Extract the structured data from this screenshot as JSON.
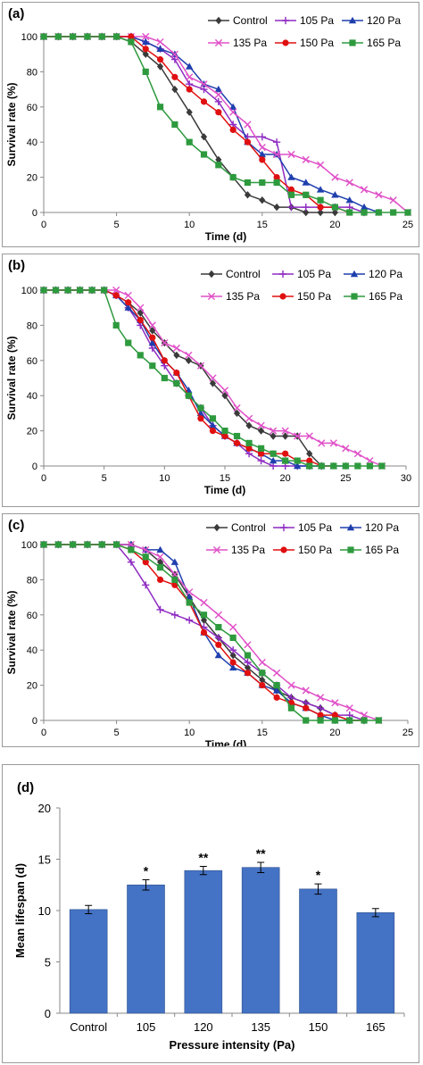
{
  "chart_data": [
    {
      "type": "line",
      "panel_label": "(a)",
      "xlabel": "Time (d)",
      "ylabel": "Survival rate (%)",
      "xlim": [
        0,
        25
      ],
      "ylim": [
        0,
        100
      ],
      "xticks": [
        "0",
        "5",
        "10",
        "15",
        "20",
        "25"
      ],
      "yticks": [
        "0",
        "20",
        "40",
        "60",
        "80",
        "100"
      ],
      "legend_position": "top-right",
      "series": [
        {
          "name": "Control",
          "color": "#3a3a3a",
          "marker": "diamond",
          "x": [
            0,
            1,
            2,
            3,
            4,
            5,
            6,
            7,
            8,
            9,
            10,
            11,
            12,
            13,
            14,
            15,
            16,
            17,
            18,
            19,
            20
          ],
          "y": [
            100,
            100,
            100,
            100,
            100,
            100,
            97,
            90,
            83,
            70,
            57,
            43,
            30,
            20,
            10,
            7,
            3,
            3,
            0,
            0,
            0
          ]
        },
        {
          "name": "105 Pa",
          "color": "#8e2bc2",
          "marker": "plus",
          "x": [
            0,
            1,
            2,
            3,
            4,
            5,
            6,
            7,
            8,
            9,
            10,
            11,
            12,
            13,
            14,
            15,
            16,
            17,
            18,
            19,
            20,
            21,
            22
          ],
          "y": [
            100,
            100,
            100,
            100,
            100,
            100,
            100,
            97,
            93,
            87,
            73,
            70,
            63,
            50,
            43,
            43,
            40,
            3,
            3,
            3,
            3,
            3,
            0
          ]
        },
        {
          "name": "120 Pa",
          "color": "#1f3fae",
          "marker": "triangle",
          "x": [
            0,
            1,
            2,
            3,
            4,
            5,
            6,
            7,
            8,
            9,
            10,
            11,
            12,
            13,
            14,
            15,
            16,
            17,
            18,
            19,
            20,
            21,
            22,
            23
          ],
          "y": [
            100,
            100,
            100,
            100,
            100,
            100,
            100,
            97,
            93,
            90,
            83,
            73,
            70,
            60,
            40,
            33,
            33,
            20,
            17,
            13,
            10,
            7,
            3,
            0
          ]
        },
        {
          "name": "135 Pa",
          "color": "#e050c8",
          "marker": "x",
          "x": [
            0,
            1,
            2,
            3,
            4,
            5,
            6,
            7,
            8,
            9,
            10,
            11,
            12,
            13,
            14,
            15,
            16,
            17,
            18,
            19,
            20,
            21,
            22,
            23,
            24,
            25
          ],
          "y": [
            100,
            100,
            100,
            100,
            100,
            100,
            100,
            100,
            97,
            90,
            77,
            73,
            67,
            57,
            50,
            37,
            33,
            33,
            30,
            27,
            20,
            17,
            13,
            10,
            7,
            0
          ]
        },
        {
          "name": "150 Pa",
          "color": "#e01010",
          "marker": "circle",
          "x": [
            0,
            1,
            2,
            3,
            4,
            5,
            6,
            7,
            8,
            9,
            10,
            11,
            12,
            13,
            14,
            15,
            16,
            17,
            18,
            19,
            20,
            21
          ],
          "y": [
            100,
            100,
            100,
            100,
            100,
            100,
            100,
            93,
            87,
            77,
            70,
            63,
            57,
            47,
            40,
            30,
            20,
            13,
            10,
            3,
            3,
            0
          ]
        },
        {
          "name": "165 Pa",
          "color": "#2e9a3e",
          "marker": "square",
          "x": [
            0,
            1,
            2,
            3,
            4,
            5,
            6,
            7,
            8,
            9,
            10,
            11,
            12,
            13,
            14,
            15,
            16,
            17,
            18,
            19,
            20,
            21,
            22,
            23,
            24,
            25
          ],
          "y": [
            100,
            100,
            100,
            100,
            100,
            100,
            97,
            80,
            60,
            50,
            40,
            33,
            27,
            20,
            17,
            17,
            17,
            10,
            10,
            7,
            3,
            0,
            0,
            0,
            0,
            0
          ]
        }
      ]
    },
    {
      "type": "line",
      "panel_label": "(b)",
      "xlabel": "Time (d)",
      "ylabel": "Survival rate (%)",
      "xlim": [
        0,
        30
      ],
      "ylim": [
        0,
        100
      ],
      "xticks": [
        "0",
        "5",
        "10",
        "15",
        "20",
        "25",
        "30"
      ],
      "yticks": [
        "0",
        "20",
        "40",
        "60",
        "80",
        "100"
      ],
      "legend_position": "top-right",
      "series": [
        {
          "name": "Control",
          "color": "#3a3a3a",
          "marker": "diamond",
          "x": [
            0,
            1,
            2,
            3,
            4,
            5,
            6,
            7,
            8,
            9,
            10,
            11,
            12,
            13,
            14,
            15,
            16,
            17,
            18,
            19,
            20,
            21,
            22,
            23
          ],
          "y": [
            100,
            100,
            100,
            100,
            100,
            100,
            97,
            93,
            87,
            77,
            70,
            63,
            60,
            57,
            47,
            40,
            30,
            23,
            20,
            17,
            17,
            17,
            7,
            0
          ]
        },
        {
          "name": "105 Pa",
          "color": "#8e2bc2",
          "marker": "plus",
          "x": [
            0,
            1,
            2,
            3,
            4,
            5,
            6,
            7,
            8,
            9,
            10,
            11,
            12,
            13,
            14,
            15,
            16,
            17,
            18,
            19,
            20,
            21,
            22,
            23
          ],
          "y": [
            100,
            100,
            100,
            100,
            100,
            100,
            97,
            90,
            80,
            67,
            57,
            47,
            40,
            33,
            23,
            17,
            13,
            7,
            3,
            0,
            0,
            0,
            0,
            0
          ]
        },
        {
          "name": "120 Pa",
          "color": "#1f3fae",
          "marker": "triangle",
          "x": [
            0,
            1,
            2,
            3,
            4,
            5,
            6,
            7,
            8,
            9,
            10,
            11,
            12,
            13,
            14,
            15,
            16,
            17,
            18,
            19,
            20,
            21,
            22,
            23,
            24,
            25
          ],
          "y": [
            100,
            100,
            100,
            100,
            100,
            100,
            97,
            90,
            83,
            70,
            60,
            53,
            43,
            30,
            23,
            17,
            13,
            10,
            7,
            3,
            3,
            0,
            0,
            0,
            0,
            0
          ]
        },
        {
          "name": "135 Pa",
          "color": "#e050c8",
          "marker": "x",
          "x": [
            0,
            1,
            2,
            3,
            4,
            5,
            6,
            7,
            8,
            9,
            10,
            11,
            12,
            13,
            14,
            15,
            16,
            17,
            18,
            19,
            20,
            21,
            22,
            23,
            24,
            25,
            26,
            27,
            28
          ],
          "y": [
            100,
            100,
            100,
            100,
            100,
            100,
            100,
            97,
            90,
            80,
            70,
            67,
            63,
            57,
            50,
            43,
            33,
            27,
            23,
            20,
            20,
            17,
            17,
            13,
            13,
            10,
            7,
            3,
            0
          ]
        },
        {
          "name": "150 Pa",
          "color": "#e01010",
          "marker": "circle",
          "x": [
            0,
            1,
            2,
            3,
            4,
            5,
            6,
            7,
            8,
            9,
            10,
            11,
            12,
            13,
            14,
            15,
            16,
            17,
            18,
            19,
            20,
            21,
            22,
            23,
            24
          ],
          "y": [
            100,
            100,
            100,
            100,
            100,
            100,
            97,
            93,
            83,
            73,
            60,
            53,
            40,
            27,
            20,
            17,
            13,
            10,
            7,
            7,
            7,
            3,
            3,
            0,
            0
          ]
        },
        {
          "name": "165 Pa",
          "color": "#2e9a3e",
          "marker": "square",
          "x": [
            0,
            1,
            2,
            3,
            4,
            5,
            6,
            7,
            8,
            9,
            10,
            11,
            12,
            13,
            14,
            15,
            16,
            17,
            18,
            19,
            20,
            21,
            22,
            23,
            24,
            25,
            26,
            27,
            28
          ],
          "y": [
            100,
            100,
            100,
            100,
            100,
            100,
            80,
            70,
            63,
            57,
            50,
            47,
            40,
            33,
            27,
            20,
            17,
            13,
            10,
            7,
            3,
            3,
            0,
            0,
            0,
            0,
            0,
            0,
            0
          ]
        }
      ]
    },
    {
      "type": "line",
      "panel_label": "(c)",
      "xlabel": "Time (d)",
      "ylabel": "Survival rate (%)",
      "xlim": [
        0,
        25
      ],
      "ylim": [
        0,
        100
      ],
      "xticks": [
        "0",
        "5",
        "10",
        "15",
        "20",
        "25"
      ],
      "yticks": [
        "0",
        "20",
        "40",
        "60",
        "80",
        "100"
      ],
      "legend_position": "top-right",
      "series": [
        {
          "name": "Control",
          "color": "#3a3a3a",
          "marker": "diamond",
          "x": [
            0,
            1,
            2,
            3,
            4,
            5,
            6,
            7,
            8,
            9,
            10,
            11,
            12,
            13,
            14,
            15,
            16,
            17,
            18,
            19,
            20,
            21,
            22
          ],
          "y": [
            100,
            100,
            100,
            100,
            100,
            100,
            100,
            97,
            90,
            83,
            70,
            57,
            47,
            37,
            30,
            23,
            17,
            13,
            10,
            7,
            3,
            0,
            0
          ]
        },
        {
          "name": "105 Pa",
          "color": "#8e2bc2",
          "marker": "plus",
          "x": [
            0,
            1,
            2,
            3,
            4,
            5,
            6,
            7,
            8,
            9,
            10,
            11,
            12,
            13,
            14,
            15,
            16,
            17,
            18,
            19,
            20,
            21,
            22
          ],
          "y": [
            100,
            100,
            100,
            100,
            100,
            100,
            90,
            77,
            63,
            60,
            57,
            53,
            47,
            40,
            33,
            27,
            20,
            13,
            10,
            7,
            3,
            3,
            0
          ]
        },
        {
          "name": "120 Pa",
          "color": "#1f3fae",
          "marker": "triangle",
          "x": [
            0,
            1,
            2,
            3,
            4,
            5,
            6,
            7,
            8,
            9,
            10,
            11,
            12,
            13,
            14,
            15,
            16,
            17,
            18,
            19,
            20,
            21
          ],
          "y": [
            100,
            100,
            100,
            100,
            100,
            100,
            100,
            97,
            97,
            90,
            70,
            50,
            37,
            30,
            27,
            20,
            17,
            10,
            7,
            3,
            0,
            0
          ]
        },
        {
          "name": "135 Pa",
          "color": "#e050c8",
          "marker": "x",
          "x": [
            0,
            1,
            2,
            3,
            4,
            5,
            6,
            7,
            8,
            9,
            10,
            11,
            12,
            13,
            14,
            15,
            16,
            17,
            18,
            19,
            20,
            21,
            22,
            23
          ],
          "y": [
            100,
            100,
            100,
            100,
            100,
            100,
            100,
            97,
            93,
            83,
            73,
            67,
            60,
            53,
            43,
            33,
            27,
            20,
            17,
            13,
            10,
            7,
            3,
            0
          ]
        },
        {
          "name": "150 Pa",
          "color": "#e01010",
          "marker": "circle",
          "x": [
            0,
            1,
            2,
            3,
            4,
            5,
            6,
            7,
            8,
            9,
            10,
            11,
            12,
            13,
            14,
            15,
            16,
            17,
            18,
            19,
            20,
            21,
            22
          ],
          "y": [
            100,
            100,
            100,
            100,
            100,
            100,
            97,
            90,
            80,
            77,
            67,
            50,
            43,
            33,
            27,
            20,
            13,
            10,
            7,
            3,
            3,
            0,
            0
          ]
        },
        {
          "name": "165 Pa",
          "color": "#2e9a3e",
          "marker": "square",
          "x": [
            0,
            1,
            2,
            3,
            4,
            5,
            6,
            7,
            8,
            9,
            10,
            11,
            12,
            13,
            14,
            15,
            16,
            17,
            18,
            19,
            20,
            21,
            22,
            23
          ],
          "y": [
            100,
            100,
            100,
            100,
            100,
            100,
            97,
            93,
            87,
            80,
            67,
            60,
            53,
            47,
            37,
            27,
            20,
            7,
            0,
            0,
            0,
            0,
            0,
            0
          ]
        }
      ]
    },
    {
      "type": "bar",
      "panel_label": "(d)",
      "xlabel": "Pressure intensity  (Pa)",
      "ylabel": "Mean lifespan (d)",
      "ylim": [
        0,
        20
      ],
      "yticks": [
        "0",
        "5",
        "10",
        "15",
        "20"
      ],
      "bar_color": "#4472c4",
      "categories": [
        "Control",
        "105",
        "120",
        "135",
        "150",
        "165"
      ],
      "values": [
        10.1,
        12.5,
        13.9,
        14.2,
        12.1,
        9.8
      ],
      "errors": [
        0.4,
        0.5,
        0.4,
        0.5,
        0.5,
        0.4
      ],
      "significance": [
        "",
        "*",
        "**",
        "**",
        "*",
        ""
      ]
    }
  ]
}
